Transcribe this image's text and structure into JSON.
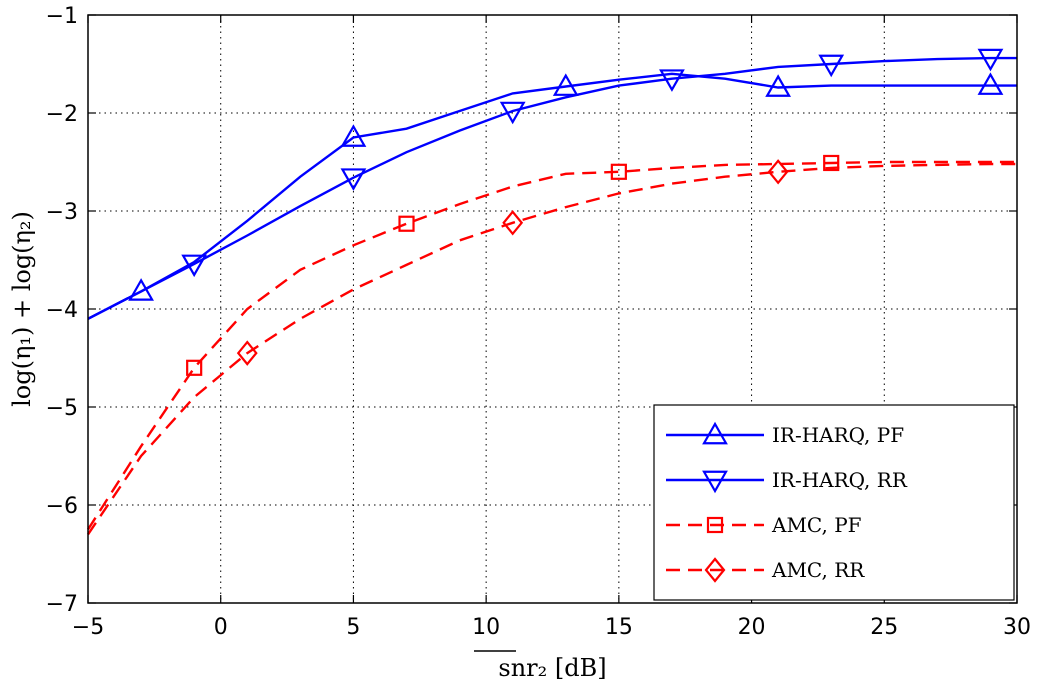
{
  "chart_data": {
    "type": "line",
    "xlabel": "snr₂ [dB]",
    "ylabel": "log(η₁) + log(η₂)",
    "xlim": [
      -5,
      30
    ],
    "ylim": [
      -7,
      -1
    ],
    "xticks": [
      -5,
      0,
      5,
      10,
      15,
      20,
      25,
      30
    ],
    "yticks": [
      -7,
      -6,
      -5,
      -4,
      -3,
      -2,
      -1
    ],
    "xtick_labels": [
      "−5",
      "0",
      "5",
      "10",
      "15",
      "20",
      "25",
      "30"
    ],
    "ytick_labels": [
      "−7",
      "−6",
      "−5",
      "−4",
      "−3",
      "−2",
      "−1"
    ],
    "grid": true,
    "legend_position": "bottom-right",
    "series": [
      {
        "name": "IR-HARQ, PF",
        "color": "#0000ff",
        "line_style": "solid",
        "marker": "triangle-up",
        "x": [
          -5,
          -3,
          -1,
          1,
          3,
          5,
          7,
          9,
          11,
          13,
          15,
          17,
          19,
          21,
          23,
          25,
          27,
          29,
          30
        ],
        "y": [
          -4.1,
          -3.82,
          -3.52,
          -3.1,
          -2.65,
          -2.25,
          -2.16,
          -1.98,
          -1.8,
          -1.73,
          -1.66,
          -1.6,
          -1.65,
          -1.74,
          -1.72,
          -1.72,
          -1.72,
          -1.72,
          -1.72
        ],
        "marker_x": [
          -3,
          5,
          13,
          21,
          29
        ],
        "marker_y": [
          -3.82,
          -2.25,
          -1.73,
          -1.74,
          -1.72
        ]
      },
      {
        "name": "IR-HARQ, RR",
        "color": "#0000ff",
        "line_style": "solid",
        "marker": "triangle-down",
        "x": [
          -5,
          -3,
          -1,
          1,
          3,
          5,
          7,
          9,
          11,
          13,
          15,
          17,
          19,
          21,
          23,
          25,
          27,
          29,
          30
        ],
        "y": [
          -4.1,
          -3.82,
          -3.54,
          -3.25,
          -2.95,
          -2.66,
          -2.4,
          -2.18,
          -1.98,
          -1.84,
          -1.72,
          -1.65,
          -1.6,
          -1.53,
          -1.5,
          -1.47,
          -1.45,
          -1.44,
          -1.44
        ],
        "marker_x": [
          -1,
          5,
          11,
          17,
          23,
          29
        ],
        "marker_y": [
          -3.54,
          -2.66,
          -1.98,
          -1.65,
          -1.5,
          -1.44
        ]
      },
      {
        "name": "AMC, PF",
        "color": "#ff0000",
        "line_style": "dashed",
        "marker": "square",
        "x": [
          -5,
          -3,
          -1,
          1,
          3,
          5,
          7,
          9,
          11,
          13,
          15,
          17,
          19,
          21,
          23,
          25,
          27,
          29,
          30
        ],
        "y": [
          -6.25,
          -5.4,
          -4.6,
          -4.0,
          -3.6,
          -3.35,
          -3.13,
          -2.93,
          -2.75,
          -2.62,
          -2.6,
          -2.56,
          -2.53,
          -2.52,
          -2.51,
          -2.5,
          -2.5,
          -2.5,
          -2.5
        ],
        "marker_x": [
          -1,
          7,
          15,
          23
        ],
        "marker_y": [
          -4.6,
          -3.13,
          -2.6,
          -2.51
        ]
      },
      {
        "name": "AMC, RR",
        "color": "#ff0000",
        "line_style": "dashed",
        "marker": "diamond",
        "x": [
          -5,
          -3,
          -1,
          1,
          3,
          5,
          7,
          9,
          11,
          13,
          15,
          17,
          19,
          21,
          23,
          25,
          27,
          29,
          30
        ],
        "y": [
          -6.3,
          -5.5,
          -4.9,
          -4.45,
          -4.1,
          -3.8,
          -3.55,
          -3.3,
          -3.12,
          -2.96,
          -2.82,
          -2.72,
          -2.65,
          -2.6,
          -2.56,
          -2.54,
          -2.53,
          -2.52,
          -2.52
        ],
        "marker_x": [
          1,
          11,
          21
        ],
        "marker_y": [
          -4.45,
          -3.12,
          -2.6
        ]
      }
    ]
  }
}
